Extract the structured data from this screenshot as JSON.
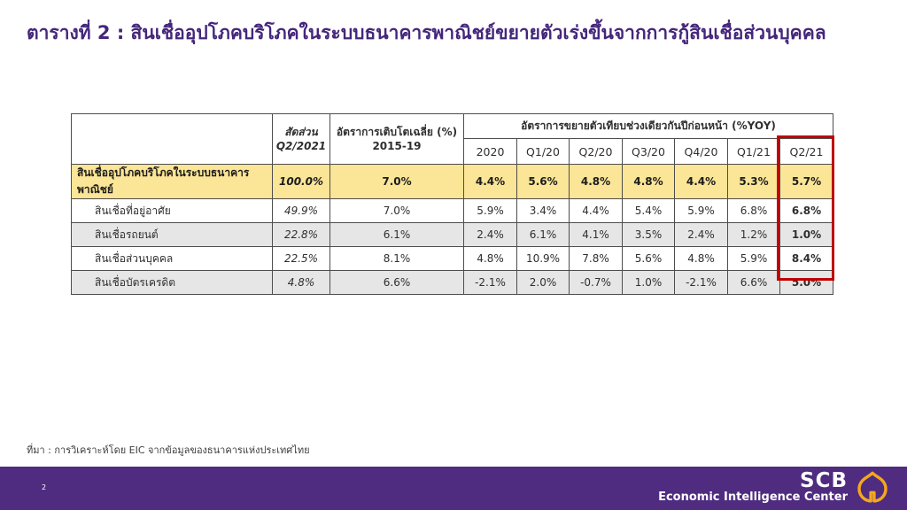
{
  "title": "ตารางที่ 2 : สินเชื่ออุปโภคบริโภคในระบบธนาคารพาณิชย์ขยายตัวเร่งขึ้นจากการกู้สินเชื่อส่วนบุคคล",
  "source_note": "ที่มา : การวิเคราะห์โดย EIC จากข้อมูลของธนาคารแห่งประเทศไทย",
  "page_number": "2",
  "footer": {
    "brand": "SCB",
    "brand_subtitle": "Economic Intelligence Center",
    "logo": "scb-bodhi-leaf-logo"
  },
  "colors": {
    "title_purple": "#44267B",
    "footer_purple": "#4F2C80",
    "highlight_yellow": "#FBE596",
    "row_gray": "#E7E6E6",
    "highlight_red": "#C00000",
    "logo_gold": "#F4A71D",
    "table_border": "#4d4d4d"
  },
  "chart_data": {
    "type": "table",
    "header": {
      "share_label_line1": "สัดส่วน",
      "share_label_line2": "Q2/2021",
      "avg_growth_line1": "อัตราการเติบโตเฉลี่ย (%)",
      "avg_growth_line2": "2015-19",
      "yoy_group_label": "อัตราการขยายตัวเทียบช่วงเดียวกันปีก่อนหน้า  (%YOY)",
      "yoy_columns": [
        "2020",
        "Q1/20",
        "Q2/20",
        "Q3/20",
        "Q4/20",
        "Q1/21",
        "Q2/21"
      ]
    },
    "rows": [
      {
        "label": "สินเชื่ออุปโภคบริโภคในระบบธนาคารพาณิชย์",
        "share": "100.0%",
        "avg_2015_19": "7.0%",
        "yoy": [
          "4.4%",
          "5.6%",
          "4.8%",
          "4.8%",
          "4.4%",
          "5.3%",
          "5.7%"
        ]
      },
      {
        "label": "สินเชื่อที่อยู่อาศัย",
        "share": "49.9%",
        "avg_2015_19": "7.0%",
        "yoy": [
          "5.9%",
          "3.4%",
          "4.4%",
          "5.4%",
          "5.9%",
          "6.8%",
          "6.8%"
        ]
      },
      {
        "label": "สินเชื่อรถยนต์",
        "share": "22.8%",
        "avg_2015_19": "6.1%",
        "yoy": [
          "2.4%",
          "6.1%",
          "4.1%",
          "3.5%",
          "2.4%",
          "1.2%",
          "1.0%"
        ]
      },
      {
        "label": "สินเชื่อส่วนบุคคล",
        "share": "22.5%",
        "avg_2015_19": "8.1%",
        "yoy": [
          "4.8%",
          "10.9%",
          "7.8%",
          "5.6%",
          "4.8%",
          "5.9%",
          "8.4%"
        ]
      },
      {
        "label": "สินเชื่อบัตรเครดิต",
        "share": "4.8%",
        "avg_2015_19": "6.6%",
        "yoy": [
          "-2.1%",
          "2.0%",
          "-0.7%",
          "1.0%",
          "-2.1%",
          "6.6%",
          "5.0%"
        ]
      }
    ],
    "highlight": {
      "column": "Q2/21",
      "style": "red-outline"
    }
  }
}
